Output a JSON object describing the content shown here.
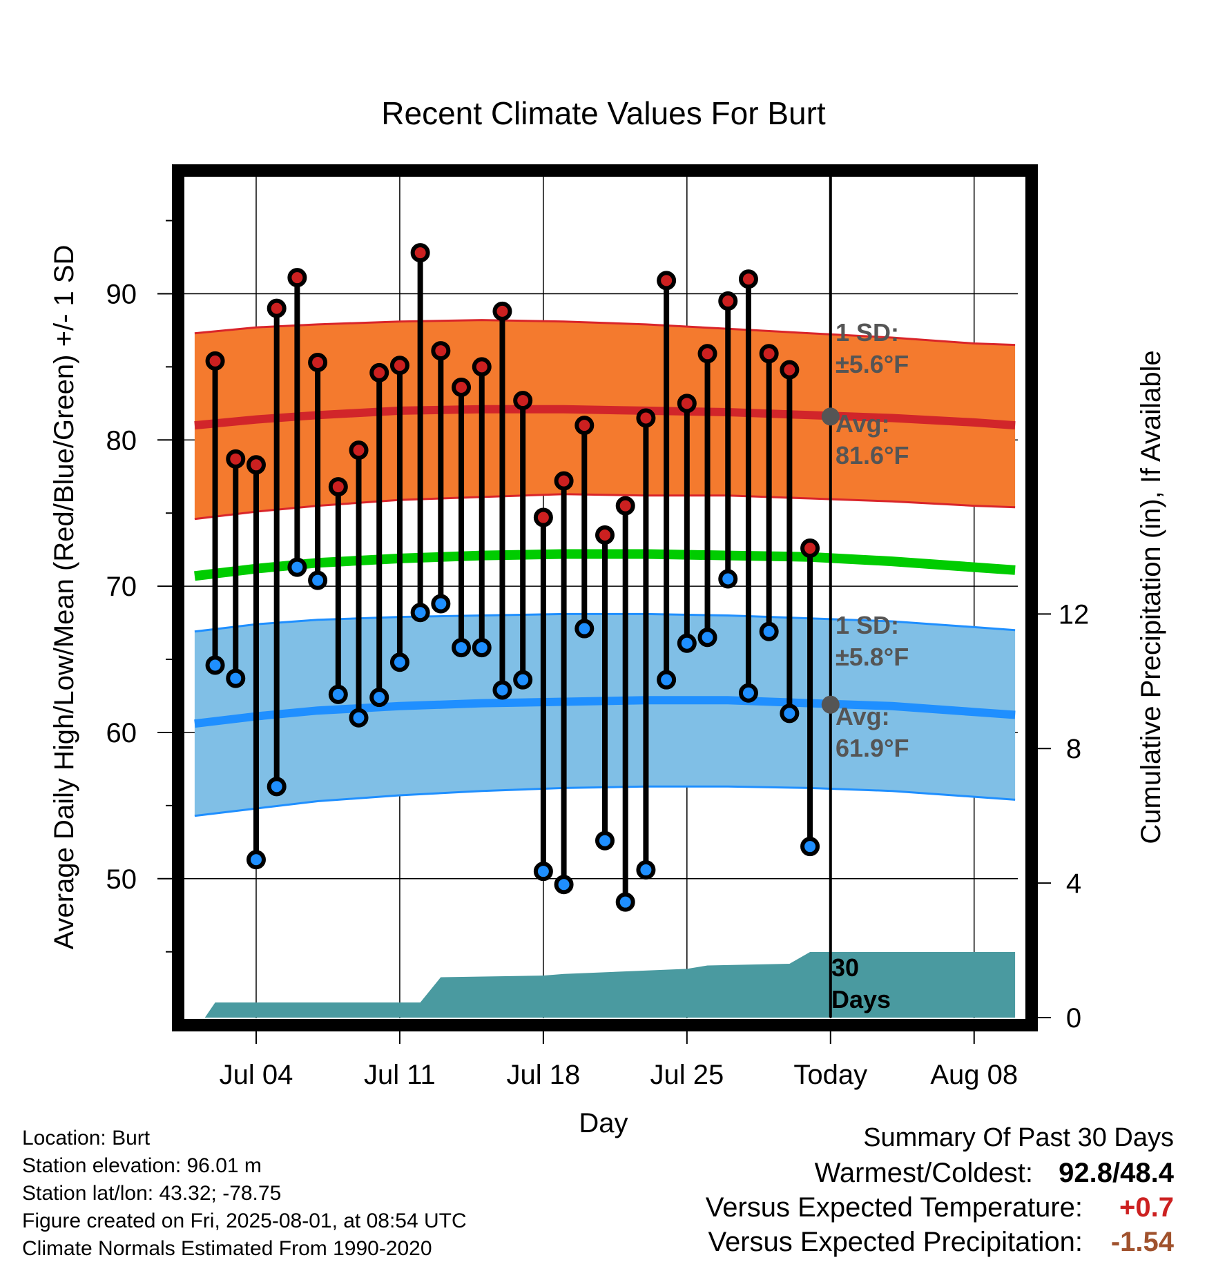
{
  "title": "Recent Climate Values For Burt",
  "x_axis_label": "Day",
  "y_axis_label": "Average Daily High/Low/Mean (Red/Blue/Green) +/- 1 SD",
  "y2_axis_label": "Cumulative Precipitation (in), If Available",
  "x_ticks": [
    {
      "label": "Jul 04",
      "day": 3
    },
    {
      "label": "Jul 11",
      "day": 10
    },
    {
      "label": "Jul 18",
      "day": 17
    },
    {
      "label": "Jul 25",
      "day": 24
    },
    {
      "label": "Today",
      "day": 31
    },
    {
      "label": "Aug 08",
      "day": 38
    }
  ],
  "y_ticks": [
    50,
    60,
    70,
    80,
    90
  ],
  "y2_ticks": [
    0,
    4,
    8,
    12
  ],
  "annotations": {
    "high_sd": "1 SD: ±5.6°F",
    "high_sd_line1": "1 SD:",
    "high_sd_line2": "±5.6°F",
    "high_avg_line1": "Avg:",
    "high_avg_line2": "81.6°F",
    "low_sd_line1": "1 SD:",
    "low_sd_line2": "±5.8°F",
    "low_avg_line1": "Avg:",
    "low_avg_line2": "61.9°F",
    "days_line1": "30",
    "days_line2": "Days"
  },
  "info": {
    "location": "Location: Burt",
    "elevation": "Station elevation: 96.01 m",
    "latlon": "Station lat/lon: 43.32; -78.75",
    "created": "Figure created on Fri, 2025-08-01, at 08:54 UTC",
    "normals": "Climate Normals Estimated From 1990-2020"
  },
  "summary": {
    "heading": "Summary Of Past 30 Days",
    "warm_cold_label": "Warmest/Coldest:",
    "warm_cold_value": "92.8/48.4",
    "temp_label": "Versus Expected Temperature:",
    "temp_value": "+0.7",
    "precip_label": "Versus Expected Precipitation:",
    "precip_value": "-1.54"
  },
  "colors": {
    "high_band": "#f47a2e",
    "high_edge": "#d9252a",
    "high_mean": "#d1252a",
    "low_band": "#80bfe6",
    "low_edge": "#1f8fff",
    "low_mean": "#1f8fff",
    "mean_line": "#00cc00",
    "precip": "#4a9aa0",
    "high_dot": "#cc2020",
    "low_dot": "#1f8fff",
    "annot": "#555555",
    "temp_value": "#cc2020",
    "precip_value": "#a0522d"
  },
  "chart_data": {
    "type": "line",
    "x_unit": "days since Jul 01 (Jul 01 = 0)",
    "xlim": [
      -0.5,
      40.5
    ],
    "ylim": [
      40.5,
      98
    ],
    "y2lim": [
      0,
      25
    ],
    "today_day": 31,
    "observed": {
      "days": [
        1,
        2,
        3,
        4,
        5,
        6,
        7,
        8,
        9,
        10,
        11,
        12,
        13,
        14,
        15,
        16,
        17,
        18,
        19,
        20,
        21,
        22,
        23,
        24,
        25,
        26,
        27,
        28,
        29,
        30
      ],
      "high": [
        85.4,
        78.7,
        78.3,
        89.0,
        91.1,
        85.3,
        76.8,
        79.3,
        84.6,
        85.1,
        92.8,
        86.1,
        83.6,
        85.0,
        88.8,
        82.7,
        74.7,
        77.2,
        81.0,
        73.5,
        75.5,
        81.5,
        90.9,
        82.5,
        85.9,
        89.5,
        91.0,
        85.9,
        84.8,
        72.6
      ],
      "low": [
        64.6,
        63.7,
        51.3,
        56.3,
        71.3,
        70.4,
        62.6,
        61.0,
        62.4,
        64.8,
        68.2,
        68.8,
        65.8,
        65.8,
        62.9,
        63.6,
        50.5,
        49.6,
        67.1,
        52.6,
        48.4,
        50.6,
        63.6,
        66.1,
        66.5,
        70.5,
        62.7,
        66.9,
        61.3,
        52.2
      ]
    },
    "normals": {
      "days": [
        0,
        3,
        6,
        10,
        14,
        18,
        22,
        26,
        30,
        34,
        38,
        40
      ],
      "high_mean": [
        81.0,
        81.4,
        81.7,
        82.0,
        82.1,
        82.1,
        82.0,
        81.9,
        81.7,
        81.5,
        81.2,
        81.0
      ],
      "high_upper": [
        87.3,
        87.7,
        87.9,
        88.1,
        88.2,
        88.1,
        87.9,
        87.6,
        87.3,
        87.0,
        86.6,
        86.5
      ],
      "high_lower": [
        74.6,
        75.1,
        75.5,
        75.9,
        76.1,
        76.3,
        76.2,
        76.2,
        76.0,
        75.8,
        75.5,
        75.4
      ],
      "mean": [
        70.7,
        71.2,
        71.6,
        71.9,
        72.1,
        72.2,
        72.2,
        72.1,
        72.0,
        71.7,
        71.3,
        71.1
      ],
      "low_mean": [
        60.6,
        61.1,
        61.5,
        61.8,
        62.0,
        62.1,
        62.2,
        62.2,
        62.0,
        61.8,
        61.4,
        61.2
      ],
      "low_upper": [
        66.9,
        67.4,
        67.7,
        67.9,
        68.0,
        68.1,
        68.1,
        68.0,
        67.8,
        67.6,
        67.2,
        67.0
      ],
      "low_lower": [
        54.3,
        54.8,
        55.3,
        55.7,
        56.0,
        56.2,
        56.3,
        56.3,
        56.2,
        56.0,
        55.6,
        55.4
      ]
    },
    "precipitation": {
      "days": [
        0,
        0.5,
        1,
        11,
        12,
        17,
        18,
        24,
        25,
        29,
        30,
        31,
        40
      ],
      "cumulative": [
        0,
        0,
        0.45,
        0.45,
        1.2,
        1.25,
        1.3,
        1.45,
        1.55,
        1.6,
        1.95,
        1.95,
        1.95
      ]
    }
  }
}
